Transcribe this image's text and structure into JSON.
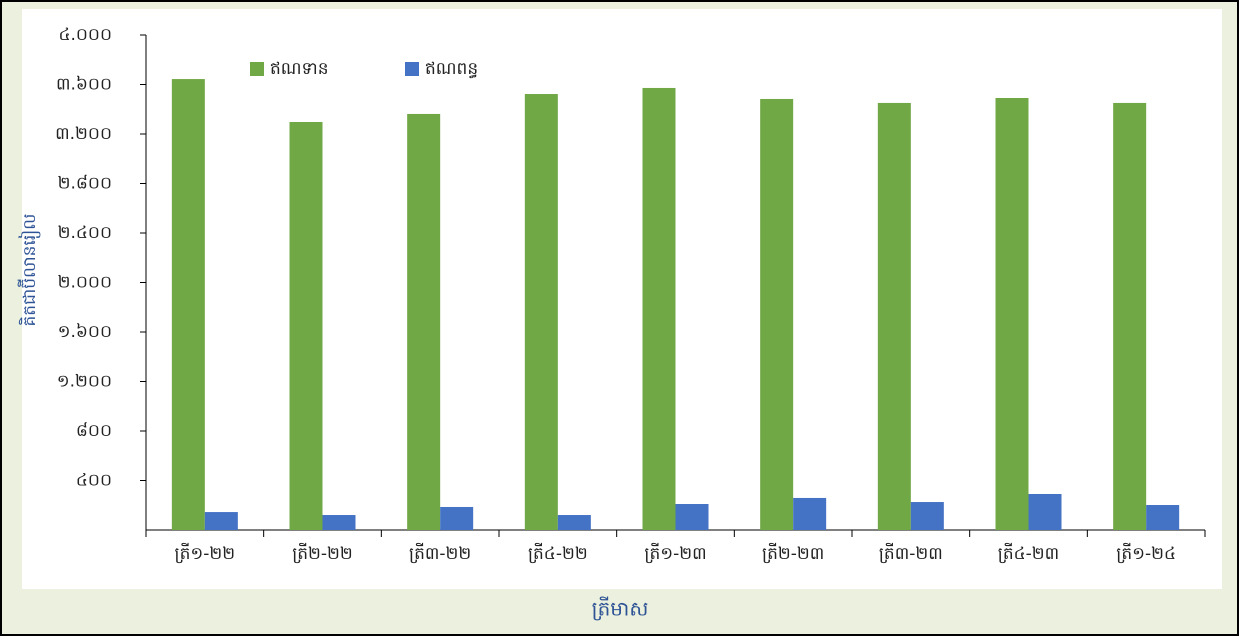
{
  "chart_data": {
    "type": "bar",
    "x_label": "ត្រីមាស",
    "y_label": "គិតជាប៊ីលានរៀល",
    "categories": [
      "ត្រី១-២២",
      "ត្រី២-២២",
      "ត្រី៣-២២",
      "ត្រី៤-២២",
      "ត្រី១-២៣",
      "ត្រី២-២៣",
      "ត្រី៣-២៣",
      "ត្រី៤-២៣",
      "ត្រី១-២៤"
    ],
    "series": [
      {
        "name": "ឥណទាន",
        "color": "#70a845",
        "values": [
          3644,
          3297,
          3362,
          3523,
          3572,
          3483,
          3451,
          3491,
          3451
        ]
      },
      {
        "name": "ឥណពន្ធ",
        "color": "#4472c4",
        "values": [
          145,
          121,
          186,
          121,
          210,
          259,
          226,
          291,
          202
        ]
      }
    ],
    "ylim": [
      0,
      4000
    ],
    "yticks": [
      {
        "value": 400,
        "label": "៤០០"
      },
      {
        "value": 800,
        "label": "៨០០"
      },
      {
        "value": 1200,
        "label": "១.២០០"
      },
      {
        "value": 1600,
        "label": "១.៦០០"
      },
      {
        "value": 2000,
        "label": "២.០០០"
      },
      {
        "value": 2400,
        "label": "២.៤០០"
      },
      {
        "value": 2800,
        "label": "២.៨០០"
      },
      {
        "value": 3200,
        "label": "៣.២០០"
      },
      {
        "value": 3600,
        "label": "៣.៦០០"
      },
      {
        "value": 4000,
        "label": "៤.០០០"
      }
    ],
    "grid": false,
    "legend": "top"
  }
}
